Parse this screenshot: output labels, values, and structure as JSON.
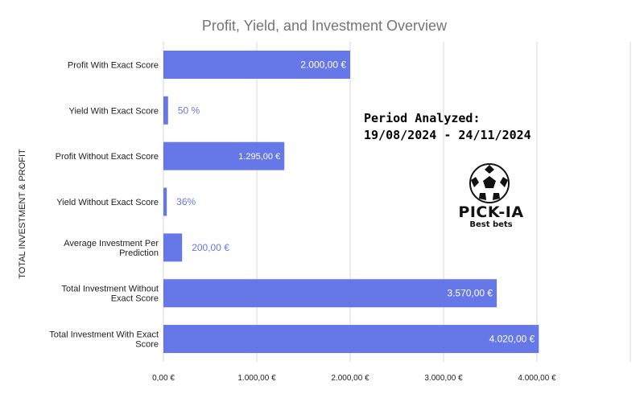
{
  "chart_data": {
    "type": "bar",
    "orientation": "horizontal",
    "title": "Profit, Yield, and Investment Overview",
    "ylabel": "TOTAL INVESTMENT & PROFIT",
    "xlabel": "",
    "xlim": [
      0,
      5000
    ],
    "x_ticks": [
      0,
      1000,
      2000,
      3000,
      4000
    ],
    "x_tick_labels": [
      "0,00 €",
      "1.000,00 €",
      "2.000,00 €",
      "3.000,00 €",
      "4.000,00 €"
    ],
    "grid": true,
    "bar_color": "#6678e8",
    "categories": [
      [
        "Profit With Exact Score"
      ],
      [
        "Yield With Exact Score"
      ],
      [
        "Profit Without Exact Score"
      ],
      [
        "Yield Without Exact Score"
      ],
      [
        "Average Investment Per",
        "Prediction"
      ],
      [
        "Total Investment Without",
        "Exact Score"
      ],
      [
        "Total Investment With Exact",
        "Score"
      ]
    ],
    "values": [
      2000,
      50,
      1295,
      36,
      200,
      3570,
      4020
    ],
    "value_labels": [
      "2.000,00 €",
      "50 %",
      "1.295,00 €",
      "36%",
      "200,00 €",
      "3.570,00 €",
      "4.020,00 €"
    ]
  },
  "annotation": {
    "line1": "Period Analyzed:",
    "line2": "19/08/2024 - 24/11/2024"
  },
  "logo": {
    "name": "PICK-IA",
    "tagline": "Best bets",
    "icon": "soccer-ball-icon"
  }
}
